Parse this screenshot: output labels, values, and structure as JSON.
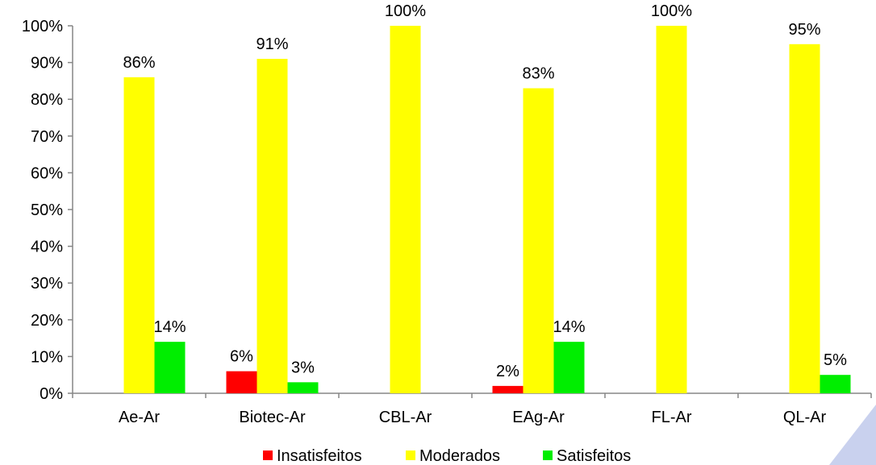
{
  "chart_data": {
    "type": "bar",
    "categories": [
      "Ae-Ar",
      "Biotec-Ar",
      "CBL-Ar",
      "EAg-Ar",
      "FL-Ar",
      "QL-Ar"
    ],
    "series": [
      {
        "name": "Insatisfeitos",
        "color": "#ff0000",
        "values": [
          0,
          6,
          0,
          2,
          0,
          0
        ],
        "labels": [
          "",
          "6%",
          "",
          "2%",
          "",
          ""
        ]
      },
      {
        "name": "Moderados",
        "color": "#ffff00",
        "values": [
          86,
          91,
          100,
          83,
          100,
          95
        ],
        "labels": [
          "86%",
          "91%",
          "100%",
          "83%",
          "100%",
          "95%"
        ]
      },
      {
        "name": "Satisfeitos",
        "color": "#00ee00",
        "values": [
          14,
          3,
          0,
          14,
          0,
          5
        ],
        "labels": [
          "14%",
          "3%",
          "",
          "14%",
          "",
          "5%"
        ]
      }
    ],
    "ylim": [
      0,
      100
    ],
    "yticks": [
      "0%",
      "10%",
      "20%",
      "30%",
      "40%",
      "50%",
      "60%",
      "70%",
      "80%",
      "90%",
      "100%"
    ],
    "grid": false,
    "legend_position": "bottom",
    "decoration_color": "#c9d1ee"
  }
}
